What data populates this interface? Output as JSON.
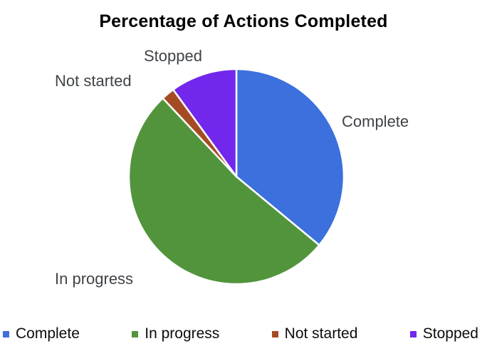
{
  "chart_data": {
    "type": "pie",
    "title": "Percentage of Actions Completed",
    "categories": [
      "Complete",
      "In progress",
      "Not started",
      "Stopped"
    ],
    "values": [
      36,
      52,
      2,
      10
    ],
    "unit": "percent",
    "colors": [
      "#3b70dd",
      "#52943c",
      "#a54b24",
      "#7127ec"
    ],
    "start_angle_deg": 0,
    "direction": "clockwise",
    "slice_gap_color": "#ffffff",
    "legend_position": "bottom",
    "label_color": "#3f4347"
  }
}
